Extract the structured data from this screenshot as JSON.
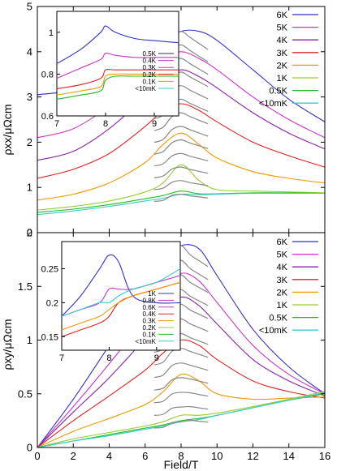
{
  "chart_data": [
    {
      "type": "line",
      "panel": "top",
      "xlabel": "",
      "ylabel": "ρxx/μΩcm",
      "xlim": [
        0,
        16
      ],
      "ylim": [
        0,
        5
      ],
      "x_ticks": [],
      "y_ticks": [
        "0",
        "1",
        "2",
        "3",
        "4",
        "5"
      ],
      "legend_position": "top-right",
      "series": [
        {
          "name": "6K",
          "color": "#3232c8",
          "x": [
            0,
            2,
            4,
            6,
            7,
            8,
            9,
            10,
            12,
            14,
            16
          ],
          "y": [
            3.05,
            3.15,
            3.45,
            3.9,
            4.2,
            4.45,
            4.45,
            4.25,
            3.6,
            2.95,
            2.45
          ]
        },
        {
          "name": "5K",
          "color": "#cc33cc",
          "x": [
            0,
            2,
            4,
            6,
            7,
            8,
            9,
            10,
            12,
            14,
            16
          ],
          "y": [
            2.1,
            2.3,
            2.8,
            3.5,
            3.85,
            4.0,
            3.85,
            3.6,
            3.0,
            2.5,
            2.1
          ]
        },
        {
          "name": "4K",
          "color": "#8822aa",
          "x": [
            0,
            2,
            4,
            6,
            7,
            8,
            9,
            10,
            12,
            14,
            16
          ],
          "y": [
            1.6,
            1.8,
            2.3,
            3.0,
            3.4,
            3.6,
            3.45,
            3.2,
            2.65,
            2.2,
            1.85
          ]
        },
        {
          "name": "3K",
          "color": "#dd2222",
          "x": [
            0,
            2,
            4,
            6,
            7,
            8,
            9,
            10,
            12,
            14,
            16
          ],
          "y": [
            1.2,
            1.4,
            1.75,
            2.35,
            2.7,
            2.85,
            2.7,
            2.45,
            2.0,
            1.7,
            1.45
          ]
        },
        {
          "name": "2K",
          "color": "#ee9900",
          "x": [
            0,
            2,
            4,
            6,
            7,
            8,
            9,
            10,
            12,
            14,
            16
          ],
          "y": [
            0.72,
            0.85,
            1.1,
            1.55,
            1.95,
            2.2,
            1.95,
            1.65,
            1.35,
            1.2,
            1.1
          ]
        },
        {
          "name": "1K",
          "color": "#99cc33",
          "x": [
            0,
            2,
            4,
            6,
            7,
            8,
            9,
            10,
            12,
            14,
            16
          ],
          "y": [
            0.5,
            0.58,
            0.7,
            0.9,
            1.1,
            1.5,
            1.15,
            0.95,
            0.92,
            0.9,
            0.88
          ]
        },
        {
          "name": "0.5K",
          "color": "#22bb22",
          "x": [
            0,
            2,
            4,
            6,
            7,
            8,
            9,
            10,
            12,
            14,
            16
          ],
          "y": [
            0.45,
            0.52,
            0.62,
            0.75,
            0.82,
            0.92,
            0.86,
            0.86,
            0.88,
            0.88,
            0.87
          ]
        },
        {
          "name": "<10mK",
          "color": "#33cccc",
          "x": [
            0,
            2,
            4,
            6,
            7,
            8,
            9,
            10,
            12,
            14,
            16
          ],
          "y": [
            0.4,
            0.48,
            0.58,
            0.7,
            0.76,
            0.85,
            0.84,
            0.85,
            0.87,
            0.87,
            0.87
          ]
        }
      ],
      "inset": {
        "xlim": [
          7,
          9.5
        ],
        "ylim": [
          0.6,
          1.1
        ],
        "x_ticks": [
          "7",
          "8",
          "9"
        ],
        "y_ticks": [
          "0.6",
          "0.8",
          "1"
        ],
        "series": [
          {
            "name": "6K-inset",
            "color": "#3232c8",
            "x": [
              7,
              7.5,
              7.9,
              8.0,
              8.2,
              8.6,
              9.0,
              9.5
            ],
            "y": [
              0.85,
              0.92,
              1.0,
              1.03,
              1.0,
              0.97,
              0.96,
              0.95
            ]
          },
          {
            "name": "5K-inset",
            "color": "#cc33cc",
            "x": [
              7,
              7.5,
              7.9,
              8.0,
              8.2,
              8.6,
              9.0,
              9.5
            ],
            "y": [
              0.78,
              0.83,
              0.87,
              0.9,
              0.89,
              0.88,
              0.88,
              0.88
            ]
          },
          {
            "name": "3K-inset",
            "color": "#dd2222",
            "x": [
              7,
              7.5,
              7.9,
              8.0,
              8.2,
              8.6,
              9.0,
              9.5
            ],
            "y": [
              0.73,
              0.75,
              0.78,
              0.82,
              0.82,
              0.82,
              0.82,
              0.82
            ]
          },
          {
            "name": "2K-inset",
            "color": "#ee9900",
            "x": [
              7,
              7.5,
              7.9,
              8.0,
              8.2,
              8.6,
              9.0,
              9.5
            ],
            "y": [
              0.7,
              0.72,
              0.74,
              0.79,
              0.8,
              0.8,
              0.8,
              0.8
            ]
          },
          {
            "name": "0.5K-inset",
            "color": "#22bb22",
            "x": [
              7,
              7.5,
              7.9,
              8.0,
              8.2,
              8.6,
              9.0,
              9.5
            ],
            "y": [
              0.68,
              0.7,
              0.72,
              0.77,
              0.79,
              0.79,
              0.79,
              0.79
            ]
          }
        ],
        "legend": [
          {
            "name": "0.5K",
            "color": "#333333"
          },
          {
            "name": "0.4K",
            "color": "#cc33cc"
          },
          {
            "name": "0.3K",
            "color": "#aa44cc"
          },
          {
            "name": "0.2K",
            "color": "#dd2222"
          },
          {
            "name": "0.1K",
            "color": "#ee9900"
          },
          {
            "name": "<10mK",
            "color": "#33cccc"
          }
        ]
      }
    },
    {
      "type": "line",
      "panel": "bottom",
      "xlabel": "Field/T",
      "ylabel": "ρxy/μΩcm",
      "xlim": [
        0,
        16
      ],
      "ylim": [
        0,
        2
      ],
      "x_ticks": [
        "0",
        "2",
        "4",
        "6",
        "8",
        "10",
        "12",
        "14",
        "16"
      ],
      "y_ticks": [
        "0",
        "0.5",
        "1",
        "1.5",
        "2"
      ],
      "legend_position": "top-right",
      "series": [
        {
          "name": "6K",
          "color": "#3232c8",
          "x": [
            0,
            2,
            4,
            6,
            7,
            8,
            9,
            10,
            12,
            14,
            16
          ],
          "y": [
            0,
            0.45,
            0.95,
            1.45,
            1.75,
            1.88,
            1.85,
            1.6,
            1.1,
            0.75,
            0.5
          ]
        },
        {
          "name": "5K",
          "color": "#cc33cc",
          "x": [
            0,
            2,
            4,
            6,
            7,
            8,
            9,
            10,
            12,
            14,
            16
          ],
          "y": [
            0,
            0.38,
            0.78,
            1.2,
            1.45,
            1.62,
            1.55,
            1.35,
            0.95,
            0.68,
            0.5
          ]
        },
        {
          "name": "4K",
          "color": "#8822aa",
          "x": [
            0,
            2,
            4,
            6,
            7,
            8,
            9,
            10,
            12,
            14,
            16
          ],
          "y": [
            0,
            0.33,
            0.65,
            1.02,
            1.25,
            1.4,
            1.32,
            1.15,
            0.82,
            0.62,
            0.48
          ]
        },
        {
          "name": "3K",
          "color": "#dd2222",
          "x": [
            0,
            2,
            4,
            6,
            7,
            8,
            9,
            10,
            12,
            14,
            16
          ],
          "y": [
            0,
            0.25,
            0.48,
            0.72,
            0.88,
            1.0,
            0.95,
            0.82,
            0.62,
            0.52,
            0.46
          ]
        },
        {
          "name": "2K",
          "color": "#ee9900",
          "x": [
            0,
            2,
            4,
            6,
            7,
            8,
            9,
            10,
            12,
            14,
            16
          ],
          "y": [
            0,
            0.15,
            0.27,
            0.4,
            0.52,
            0.68,
            0.62,
            0.5,
            0.45,
            0.46,
            0.47
          ]
        },
        {
          "name": "1K",
          "color": "#99cc33",
          "x": [
            0,
            2,
            4,
            6,
            7,
            8,
            9,
            10,
            12,
            14,
            16
          ],
          "y": [
            0,
            0.08,
            0.14,
            0.2,
            0.24,
            0.3,
            0.3,
            0.32,
            0.38,
            0.45,
            0.52
          ]
        },
        {
          "name": "0.5K",
          "color": "#22bb22",
          "x": [
            0,
            2,
            4,
            6,
            7,
            8,
            9,
            10,
            12,
            14,
            16
          ],
          "y": [
            0,
            0.06,
            0.12,
            0.18,
            0.21,
            0.25,
            0.27,
            0.3,
            0.37,
            0.44,
            0.5
          ]
        },
        {
          "name": "<10mK",
          "color": "#33cccc",
          "x": [
            0,
            2,
            4,
            6,
            7,
            8,
            9,
            10,
            12,
            14,
            16
          ],
          "y": [
            0,
            0.06,
            0.11,
            0.17,
            0.2,
            0.24,
            0.26,
            0.3,
            0.37,
            0.44,
            0.51
          ]
        }
      ],
      "inset": {
        "xlim": [
          7,
          9.5
        ],
        "ylim": [
          0.13,
          0.29
        ],
        "x_ticks": [
          "7",
          "8",
          "9"
        ],
        "y_ticks": [
          "0.15",
          "0.2",
          "0.25"
        ],
        "series": [
          {
            "name": "2K-inset",
            "color": "#3232c8",
            "x": [
              7,
              7.4,
              7.8,
              8.0,
              8.2,
              8.5,
              9.0,
              9.5
            ],
            "y": [
              0.18,
              0.21,
              0.25,
              0.27,
              0.26,
              0.21,
              0.2,
              0.2
            ]
          },
          {
            "name": "1K-inset",
            "color": "#cc33cc",
            "x": [
              7,
              7.4,
              7.8,
              8.0,
              8.2,
              8.5,
              9.0,
              9.5
            ],
            "y": [
              0.18,
              0.19,
              0.2,
              0.22,
              0.22,
              0.22,
              0.23,
              0.24
            ]
          },
          {
            "name": "0.4K-inset",
            "color": "#dd2222",
            "x": [
              7,
              7.4,
              7.8,
              8.0,
              8.2,
              8.5,
              9.0,
              9.5
            ],
            "y": [
              0.15,
              0.16,
              0.17,
              0.18,
              0.2,
              0.21,
              0.22,
              0.23
            ]
          },
          {
            "name": "0.2K-inset",
            "color": "#ee9900",
            "x": [
              7,
              7.4,
              7.8,
              8.0,
              8.2,
              8.5,
              9.0,
              9.5
            ],
            "y": [
              0.16,
              0.17,
              0.18,
              0.19,
              0.2,
              0.21,
              0.22,
              0.23
            ]
          },
          {
            "name": "<10mK-inset",
            "color": "#33cccc",
            "x": [
              7,
              7.4,
              7.8,
              8.0,
              8.2,
              8.5,
              9.0,
              9.5
            ],
            "y": [
              0.18,
              0.19,
              0.2,
              0.2,
              0.21,
              0.22,
              0.23,
              0.25
            ]
          }
        ],
        "legend": [
          {
            "name": "1K",
            "color": "#3232c8"
          },
          {
            "name": "0.8K",
            "color": "#cc33cc"
          },
          {
            "name": "0.6K",
            "color": "#aa44cc"
          },
          {
            "name": "0.4K",
            "color": "#dd2222"
          },
          {
            "name": "0.3K",
            "color": "#ee9900"
          },
          {
            "name": "0.2K",
            "color": "#99cc33"
          },
          {
            "name": "0.1K",
            "color": "#22bb22"
          },
          {
            "name": "<10mK",
            "color": "#33cccc"
          }
        ]
      }
    }
  ]
}
